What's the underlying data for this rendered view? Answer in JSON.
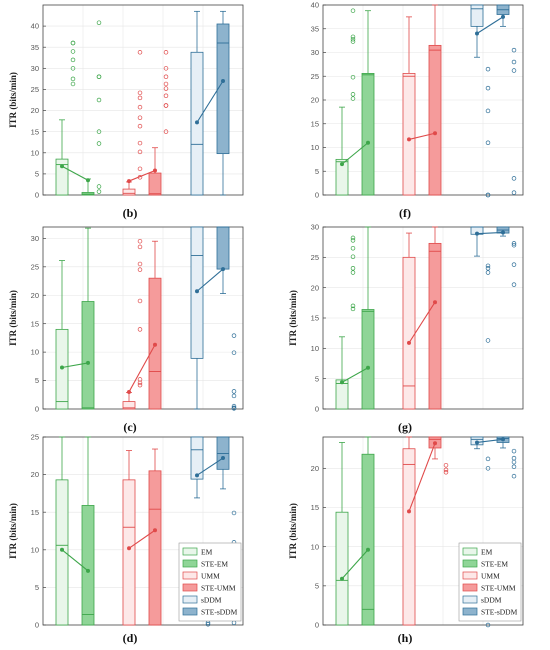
{
  "legend_labels": [
    "EM",
    "STE-EM",
    "UMM",
    "STE-UMM",
    "sDDM",
    "STE-sDDM"
  ],
  "colors": {
    "green_stroke": "#3da64a",
    "green_light": "#e9f6ea",
    "green_dark": "#8fd597",
    "red_stroke": "#e04a4a",
    "red_light": "#fde8e8",
    "red_dark": "#f59b9b",
    "blue_stroke": "#2f6f98",
    "blue_light": "#e6eff6",
    "blue_dark": "#8db3cd"
  },
  "chart_data": [
    {
      "label": "(b)",
      "type": "box",
      "ylabel": "ITR (bits/min)",
      "ylim": [
        0,
        45
      ],
      "yticks": [
        0,
        5,
        10,
        15,
        20,
        25,
        30,
        35,
        40
      ],
      "means": [
        6.8,
        3.5,
        3.3,
        5.8,
        17.2,
        27.0
      ],
      "boxes": [
        {
          "name": "EM",
          "q1": 0,
          "med": 7.2,
          "q3": 8.5,
          "lo": 0,
          "hi": 17.8,
          "out": [
            36,
            36,
            34,
            32,
            30,
            27.5,
            26.3
          ]
        },
        {
          "name": "STE-EM",
          "q1": 0,
          "med": 0.2,
          "q3": 0.6,
          "lo": 0,
          "hi": 3.8,
          "out": [
            40.8,
            28,
            28,
            22.5,
            15,
            12.2,
            2,
            0.8
          ]
        },
        {
          "name": "UMM",
          "q1": 0,
          "med": 0.4,
          "q3": 1.4,
          "lo": 0,
          "hi": 3.1,
          "out": [
            33.8,
            24.2,
            23,
            20.8,
            18.3,
            16.3,
            12.3,
            10.2,
            6.2,
            4.2
          ]
        },
        {
          "name": "STE-UMM",
          "q1": 0,
          "med": 0.3,
          "q3": 5.2,
          "lo": 0,
          "hi": 11.2,
          "out": [
            33.8,
            30,
            28,
            26.3,
            25.2,
            23.5,
            21.2,
            21.2,
            15
          ]
        },
        {
          "name": "sDDM",
          "q1": 0,
          "med": 12,
          "q3": 33.8,
          "lo": 0,
          "hi": 43.5,
          "out": []
        },
        {
          "name": "STE-sDDM",
          "q1": 9.8,
          "med": 36,
          "q3": 40.5,
          "lo": 0,
          "hi": 43.5,
          "out": []
        }
      ]
    },
    {
      "label": "(f)",
      "type": "box",
      "ylabel": "",
      "ylim": [
        0,
        40
      ],
      "yticks": [
        0,
        5,
        10,
        15,
        20,
        25,
        30,
        35,
        40
      ],
      "means": [
        6.5,
        11.0,
        11.7,
        13.0,
        34.0,
        37.5
      ],
      "boxes": [
        {
          "name": "EM",
          "q1": 0,
          "med": 7,
          "q3": 7.5,
          "lo": 0,
          "hi": 18.5,
          "out": [
            38.8,
            33.3,
            32.8,
            32.3,
            24.8,
            21.2,
            20.3
          ]
        },
        {
          "name": "STE-EM",
          "q1": 0,
          "med": 25.3,
          "q3": 25.6,
          "lo": 0,
          "hi": 38.8,
          "out": []
        },
        {
          "name": "UMM",
          "q1": 0,
          "med": 25,
          "q3": 25.6,
          "lo": 0,
          "hi": 37.5,
          "out": []
        },
        {
          "name": "STE-UMM",
          "q1": 0,
          "med": 30.5,
          "q3": 31.5,
          "lo": 0,
          "hi": 40,
          "out": []
        },
        {
          "name": "sDDM",
          "q1": 35.5,
          "med": 39.2,
          "q3": 40,
          "lo": 29,
          "hi": 40,
          "out": [
            26.5,
            22.5,
            17.7,
            11,
            0,
            0
          ]
        },
        {
          "name": "STE-sDDM",
          "q1": 38,
          "med": 39,
          "q3": 40,
          "lo": 35.5,
          "hi": 40,
          "out": [
            30.5,
            28,
            26.2,
            3.5,
            0.5
          ]
        }
      ]
    },
    {
      "label": "(c)",
      "type": "box",
      "ylabel": "ITR (bits/min)",
      "ylim": [
        0,
        32
      ],
      "yticks": [
        0,
        5,
        10,
        15,
        20,
        25,
        30
      ],
      "means": [
        7.3,
        8.1,
        3.0,
        11.3,
        20.7,
        24.6
      ],
      "boxes": [
        {
          "name": "EM",
          "q1": 0,
          "med": 1.3,
          "q3": 14,
          "lo": 0,
          "hi": 26.1,
          "out": []
        },
        {
          "name": "STE-EM",
          "q1": 0,
          "med": 0.2,
          "q3": 18.9,
          "lo": 0,
          "hi": 31.8,
          "out": []
        },
        {
          "name": "UMM",
          "q1": 0,
          "med": 0.2,
          "q3": 1.3,
          "lo": 0,
          "hi": 2.9,
          "out": [
            29.5,
            28.5,
            25.5,
            24.5,
            19,
            14,
            5.2,
            4.6,
            4.2
          ]
        },
        {
          "name": "STE-UMM",
          "q1": 0,
          "med": 6.6,
          "q3": 23,
          "lo": 0,
          "hi": 29.5,
          "out": []
        },
        {
          "name": "sDDM",
          "q1": 8.9,
          "med": 27,
          "q3": 32,
          "lo": 0,
          "hi": 32,
          "out": []
        },
        {
          "name": "STE-sDDM",
          "q1": 24.6,
          "med": 32,
          "q3": 32,
          "lo": 20.3,
          "hi": 32,
          "out": [
            12.9,
            9.9,
            3.1,
            2.3,
            0.5,
            0.2,
            0.1
          ]
        }
      ]
    },
    {
      "label": "(g)",
      "type": "box",
      "ylabel": "ITR (bits/min)",
      "ylim": [
        0,
        30
      ],
      "yticks": [
        0,
        5,
        10,
        15,
        20,
        25,
        30
      ],
      "means": [
        4.4,
        6.8,
        10.9,
        17.6,
        28.9,
        29.1
      ],
      "boxes": [
        {
          "name": "EM",
          "q1": 0,
          "med": 4.2,
          "q3": 4.8,
          "lo": 0,
          "hi": 11.9,
          "out": [
            28.2,
            27.8,
            26.5,
            25.1,
            23.2,
            22.5,
            17,
            16.5
          ]
        },
        {
          "name": "STE-EM",
          "q1": 0,
          "med": 16.1,
          "q3": 16.4,
          "lo": 0,
          "hi": 30,
          "out": []
        },
        {
          "name": "UMM",
          "q1": 0,
          "med": 3.8,
          "q3": 25,
          "lo": 0,
          "hi": 29,
          "out": []
        },
        {
          "name": "STE-UMM",
          "q1": 0,
          "med": 26,
          "q3": 27.3,
          "lo": 0,
          "hi": 30,
          "out": []
        },
        {
          "name": "sDDM",
          "q1": 28.8,
          "med": 30,
          "q3": 30,
          "lo": 25.2,
          "hi": 30,
          "out": [
            23.2,
            22.5,
            23.6,
            11.3
          ]
        },
        {
          "name": "STE-sDDM",
          "q1": 29,
          "med": 29.5,
          "q3": 30,
          "lo": 28.5,
          "hi": 30,
          "out": [
            27.3,
            27,
            23.8,
            20.5
          ]
        }
      ]
    },
    {
      "label": "(d)",
      "type": "box",
      "ylabel": "ITR (bits/min)",
      "ylim": [
        0,
        25
      ],
      "yticks": [
        0,
        5,
        10,
        15,
        20,
        25
      ],
      "means": [
        10.0,
        7.2,
        10.2,
        12.6,
        19.9,
        22.2
      ],
      "boxes": [
        {
          "name": "EM",
          "q1": 0,
          "med": 10.6,
          "q3": 19.3,
          "lo": 0,
          "hi": 25,
          "out": []
        },
        {
          "name": "STE-EM",
          "q1": 0,
          "med": 1.4,
          "q3": 15.9,
          "lo": 0,
          "hi": 25,
          "out": []
        },
        {
          "name": "UMM",
          "q1": 0,
          "med": 13,
          "q3": 19.3,
          "lo": 0,
          "hi": 23.2,
          "out": []
        },
        {
          "name": "STE-UMM",
          "q1": 0,
          "med": 15.4,
          "q3": 20.5,
          "lo": 0,
          "hi": 23.4,
          "out": []
        },
        {
          "name": "sDDM",
          "q1": 19.4,
          "med": 23.3,
          "q3": 25,
          "lo": 16.9,
          "hi": 25,
          "out": [
            10.3,
            0.3,
            0.1
          ]
        },
        {
          "name": "STE-sDDM",
          "q1": 20.7,
          "med": 22.8,
          "q3": 25,
          "lo": 18.1,
          "hi": 25,
          "out": [
            14.9,
            11,
            0.3
          ]
        }
      ]
    },
    {
      "label": "(h)",
      "type": "box",
      "ylabel": "ITR (bits/min)",
      "ylim": [
        0,
        24
      ],
      "yticks": [
        0,
        5,
        10,
        15,
        20
      ],
      "means": [
        5.9,
        9.6,
        14.5,
        23.2,
        23.3,
        23.7
      ],
      "boxes": [
        {
          "name": "EM",
          "q1": 0,
          "med": 5.7,
          "q3": 14.4,
          "lo": 0,
          "hi": 23.3,
          "out": []
        },
        {
          "name": "STE-EM",
          "q1": 0,
          "med": 2,
          "q3": 21.8,
          "lo": 0,
          "hi": 24,
          "out": []
        },
        {
          "name": "UMM",
          "q1": 0,
          "med": 20.5,
          "q3": 22.5,
          "lo": 0,
          "hi": 24,
          "out": []
        },
        {
          "name": "STE-UMM",
          "q1": 22.6,
          "med": 23.7,
          "q3": 24,
          "lo": 21.2,
          "hi": 24,
          "out": [
            20.4,
            19.8,
            19.5
          ]
        },
        {
          "name": "sDDM",
          "q1": 23,
          "med": 23.7,
          "q3": 24,
          "lo": 22.5,
          "hi": 24,
          "out": [
            21.2,
            20,
            0
          ]
        },
        {
          "name": "STE-sDDM",
          "q1": 23.3,
          "med": 23.8,
          "q3": 24,
          "lo": 22.6,
          "hi": 24,
          "out": [
            22.2,
            21.3,
            20.8,
            20.2,
            19
          ]
        }
      ]
    }
  ]
}
